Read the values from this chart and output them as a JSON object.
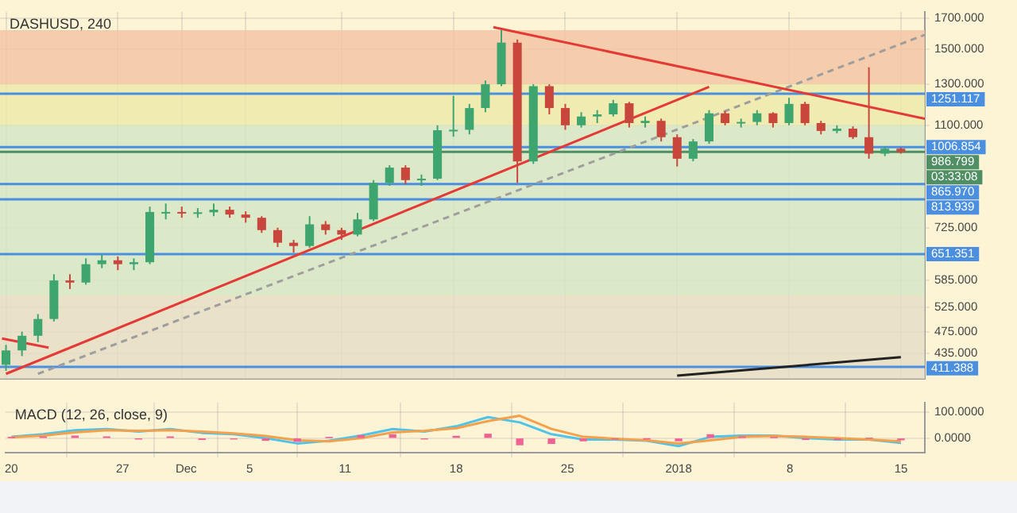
{
  "chart_data": [
    {
      "type": "candlestick",
      "title": "DASHUSD, 240",
      "x": [
        "2017-11-20",
        "2017-11-21",
        "2017-11-22",
        "2017-11-23",
        "2017-11-24",
        "2017-11-25",
        "2017-11-26",
        "2017-11-27",
        "2017-11-28",
        "2017-11-29",
        "2017-11-30",
        "2017-12-01",
        "2017-12-02",
        "2017-12-03",
        "2017-12-04",
        "2017-12-05",
        "2017-12-06",
        "2017-12-07",
        "2017-12-08",
        "2017-12-09",
        "2017-12-10",
        "2017-12-11",
        "2017-12-12",
        "2017-12-13",
        "2017-12-14",
        "2017-12-15",
        "2017-12-16",
        "2017-12-17",
        "2017-12-18",
        "2017-12-19",
        "2017-12-20",
        "2017-12-21",
        "2017-12-22",
        "2017-12-23",
        "2017-12-24",
        "2017-12-25",
        "2017-12-26",
        "2017-12-27",
        "2017-12-28",
        "2017-12-29",
        "2017-12-30",
        "2017-12-31",
        "2018-01-01",
        "2018-01-02",
        "2018-01-03",
        "2018-01-04",
        "2018-01-05",
        "2018-01-06",
        "2018-01-07",
        "2018-01-08",
        "2018-01-09",
        "2018-01-10",
        "2018-01-11",
        "2018-01-12",
        "2018-01-13",
        "2018-01-14",
        "2018-01-15"
      ],
      "ohlc": [
        [
          415,
          450,
          405,
          440
        ],
        [
          440,
          475,
          430,
          467
        ],
        [
          467,
          510,
          455,
          500
        ],
        [
          500,
          600,
          495,
          585
        ],
        [
          585,
          600,
          565,
          580
        ],
        [
          580,
          640,
          575,
          625
        ],
        [
          625,
          650,
          615,
          635
        ],
        [
          635,
          645,
          610,
          625
        ],
        [
          625,
          640,
          610,
          630
        ],
        [
          630,
          790,
          625,
          773
        ],
        [
          773,
          800,
          750,
          773
        ],
        [
          773,
          790,
          755,
          770
        ],
        [
          770,
          785,
          755,
          772
        ],
        [
          772,
          800,
          760,
          780
        ],
        [
          780,
          790,
          755,
          765
        ],
        [
          765,
          775,
          740,
          755
        ],
        [
          755,
          760,
          710,
          718
        ],
        [
          718,
          725,
          670,
          682
        ],
        [
          682,
          690,
          655,
          673
        ],
        [
          673,
          760,
          668,
          735
        ],
        [
          735,
          745,
          705,
          718
        ],
        [
          718,
          725,
          690,
          705
        ],
        [
          705,
          770,
          700,
          750
        ],
        [
          750,
          880,
          745,
          870
        ],
        [
          870,
          935,
          860,
          926
        ],
        [
          926,
          935,
          865,
          880
        ],
        [
          880,
          900,
          860,
          885
        ],
        [
          885,
          1100,
          880,
          1078
        ],
        [
          1078,
          1240,
          1050,
          1080
        ],
        [
          1080,
          1200,
          1060,
          1180
        ],
        [
          1180,
          1320,
          1160,
          1300
        ],
        [
          1300,
          1620,
          1290,
          1540
        ],
        [
          1540,
          1560,
          870,
          950
        ],
        [
          950,
          1300,
          940,
          1290
        ],
        [
          1290,
          1300,
          1150,
          1180
        ],
        [
          1180,
          1200,
          1080,
          1100
        ],
        [
          1100,
          1160,
          1090,
          1140
        ],
        [
          1140,
          1170,
          1110,
          1150
        ],
        [
          1150,
          1220,
          1140,
          1203
        ],
        [
          1203,
          1210,
          1090,
          1110
        ],
        [
          1110,
          1140,
          1090,
          1120
        ],
        [
          1120,
          1130,
          1030,
          1048
        ],
        [
          1048,
          1060,
          930,
          960
        ],
        [
          960,
          1040,
          950,
          1030
        ],
        [
          1030,
          1170,
          1020,
          1155
        ],
        [
          1155,
          1165,
          1100,
          1110
        ],
        [
          1110,
          1130,
          1090,
          1115
        ],
        [
          1115,
          1170,
          1100,
          1155
        ],
        [
          1155,
          1160,
          1090,
          1110
        ],
        [
          1110,
          1230,
          1100,
          1200
        ],
        [
          1200,
          1210,
          1100,
          1110
        ],
        [
          1110,
          1120,
          1060,
          1075
        ],
        [
          1075,
          1100,
          1065,
          1085
        ],
        [
          1085,
          1095,
          1040,
          1048
        ],
        [
          1048,
          1393,
          960,
          980
        ],
        [
          980,
          1010,
          970,
          1000
        ],
        [
          1000,
          1005,
          980,
          987
        ]
      ],
      "series": [
        {
          "type": "line",
          "color": "#e53935",
          "x": [
            "2017-11-20",
            "2018-01-03"
          ],
          "values": [
            400,
            1286
          ]
        },
        {
          "type": "line",
          "color": "#e53935",
          "x": [
            "2017-12-20T12:00",
            "2018-01-16T12:00"
          ],
          "values": [
            1640,
            1130
          ]
        },
        {
          "type": "line",
          "color": "#e53935",
          "x": [
            "2017-11-19T18:00",
            "2017-11-22T16:00"
          ],
          "values": [
            462,
            445
          ]
        },
        {
          "type": "line",
          "color": "#222222",
          "x": [
            "2018-01-01",
            "2018-01-15"
          ],
          "values": [
            397,
            428
          ]
        },
        {
          "type": "line",
          "color": "#9e9e9e",
          "line_style": "dashed",
          "x": [
            "2017-11-22",
            "2018-01-16T12:00"
          ],
          "values": [
            400,
            1590
          ]
        }
      ],
      "xlim": [
        "2017-11-19T15:00",
        "2018-01-16T12:00"
      ],
      "xticks": [
        {
          "value": "2017-11-20",
          "label": null
        },
        {
          "value": "2017-11-27",
          "label": null
        },
        {
          "value": "2017-12-01",
          "label": null
        },
        {
          "value": "2017-12-05",
          "label": null
        },
        {
          "value": "2017-12-11",
          "label": null
        },
        {
          "value": "2017-12-18",
          "label": null
        },
        {
          "value": "2017-12-25",
          "label": null
        },
        {
          "value": "2018-01-01",
          "label": null
        },
        {
          "value": "2018-01-08",
          "label": null
        },
        {
          "value": "2018-01-15",
          "label": null
        }
      ],
      "log": true,
      "ylim": [
        392,
        1745
      ],
      "yticks": [
        {
          "value": 1700,
          "label": "1700.000"
        },
        {
          "value": 1500,
          "label": "1500.000"
        },
        {
          "value": 1300,
          "label": "1300.000"
        },
        {
          "value": 1100,
          "label": "1100.000"
        },
        {
          "value": 725,
          "label": "725.000"
        },
        {
          "value": 585,
          "label": "585.000"
        },
        {
          "value": 525,
          "label": "525.000"
        },
        {
          "value": 475,
          "label": "475.000"
        },
        {
          "value": 435,
          "label": "435.000"
        }
      ],
      "tick_labels": "y",
      "grid": true,
      "bands": [
        {
          "axis": "y",
          "from": 1300,
          "to": 1620,
          "color": "#f3c3a3"
        },
        {
          "axis": "y",
          "from": 1100,
          "to": 1300,
          "color": "#ece9a8"
        },
        {
          "axis": "y",
          "from": 550,
          "to": 1100,
          "color": "#d3e6c6"
        },
        {
          "axis": "y",
          "from": 392,
          "to": 550,
          "color": "#e4dcc4"
        }
      ],
      "ref_lines": [
        {
          "axis": "y",
          "value": 1251.117,
          "label": "1251.117",
          "color": "#4a8fe0"
        },
        {
          "axis": "y",
          "value": 1006.854,
          "label": "1006.854",
          "color": "#4a8fe0"
        },
        {
          "axis": "y",
          "value": 986.799,
          "label": "986.799",
          "color": "#4f8f63"
        },
        {
          "axis": "y",
          "value": 865.97,
          "label": "865.970",
          "color": "#4a8fe0"
        },
        {
          "axis": "y",
          "value": 813.939,
          "label": "813.939",
          "color": "#4a8fe0"
        },
        {
          "axis": "y",
          "value": 651.351,
          "label": "651.351",
          "color": "#4a8fe0"
        },
        {
          "axis": "y",
          "value": 411.388,
          "label": "411.388",
          "color": "#4a8fe0"
        }
      ],
      "annotations": [
        "03:33:08"
      ],
      "legend": false
    },
    {
      "type": "line",
      "title": "MACD (12, 26, close, 9)",
      "x": [
        "2017-11-20",
        "2017-11-22",
        "2017-11-24",
        "2017-11-26",
        "2017-11-28",
        "2017-11-30",
        "2017-12-02",
        "2017-12-04",
        "2017-12-06",
        "2017-12-08",
        "2017-12-10",
        "2017-12-12",
        "2017-12-14",
        "2017-12-16",
        "2017-12-18",
        "2017-12-20",
        "2017-12-22",
        "2017-12-24",
        "2017-12-26",
        "2017-12-28",
        "2017-12-30",
        "2018-01-01",
        "2018-01-03",
        "2018-01-05",
        "2018-01-07",
        "2018-01-09",
        "2018-01-11",
        "2018-01-13",
        "2018-01-15"
      ],
      "series": [
        {
          "type": "bar",
          "color": "#f06292",
          "values": [
            2,
            5,
            8,
            5,
            -3,
            5,
            -5,
            -3,
            -8,
            -12,
            2,
            10,
            13,
            -3,
            7,
            15,
            -25,
            -20,
            -10,
            -3,
            -2,
            -10,
            13,
            5,
            2,
            -5,
            -5,
            0,
            -6
          ]
        },
        {
          "type": "line",
          "color": "#f5a04a",
          "values": [
            3,
            10,
            22,
            30,
            28,
            30,
            25,
            18,
            8,
            -8,
            -12,
            0,
            22,
            28,
            38,
            65,
            85,
            35,
            5,
            -2,
            -8,
            -20,
            -8,
            5,
            8,
            5,
            0,
            -5,
            -12
          ]
        },
        {
          "type": "line",
          "color": "#4fc3e8",
          "values": [
            5,
            15,
            30,
            35,
            25,
            35,
            20,
            15,
            0,
            -20,
            -10,
            10,
            35,
            25,
            45,
            80,
            60,
            15,
            -5,
            -5,
            -10,
            -30,
            5,
            10,
            10,
            0,
            -5,
            -5,
            -18
          ]
        }
      ],
      "xlim": [
        "2017-11-19T15:00",
        "2018-01-16T12:00"
      ],
      "xticks": [
        {
          "value": "2017-11-20",
          "label": "20"
        },
        {
          "value": "2017-11-27",
          "label": "27"
        },
        {
          "value": "2017-12-01",
          "label": "Dec"
        },
        {
          "value": "2017-12-05",
          "label": "5"
        },
        {
          "value": "2017-12-11",
          "label": "11"
        },
        {
          "value": "2017-12-18",
          "label": "18"
        },
        {
          "value": "2017-12-25",
          "label": "25"
        },
        {
          "value": "2018-01-01",
          "label": "2018"
        },
        {
          "value": "2018-01-08",
          "label": "8"
        },
        {
          "value": "2018-01-15",
          "label": "15"
        }
      ],
      "ylim": [
        -55,
        135
      ],
      "yticks": [
        {
          "value": 100,
          "label": "100.0000"
        },
        {
          "value": 0,
          "label": "0.0000"
        }
      ],
      "grid": true,
      "legend": false
    }
  ]
}
